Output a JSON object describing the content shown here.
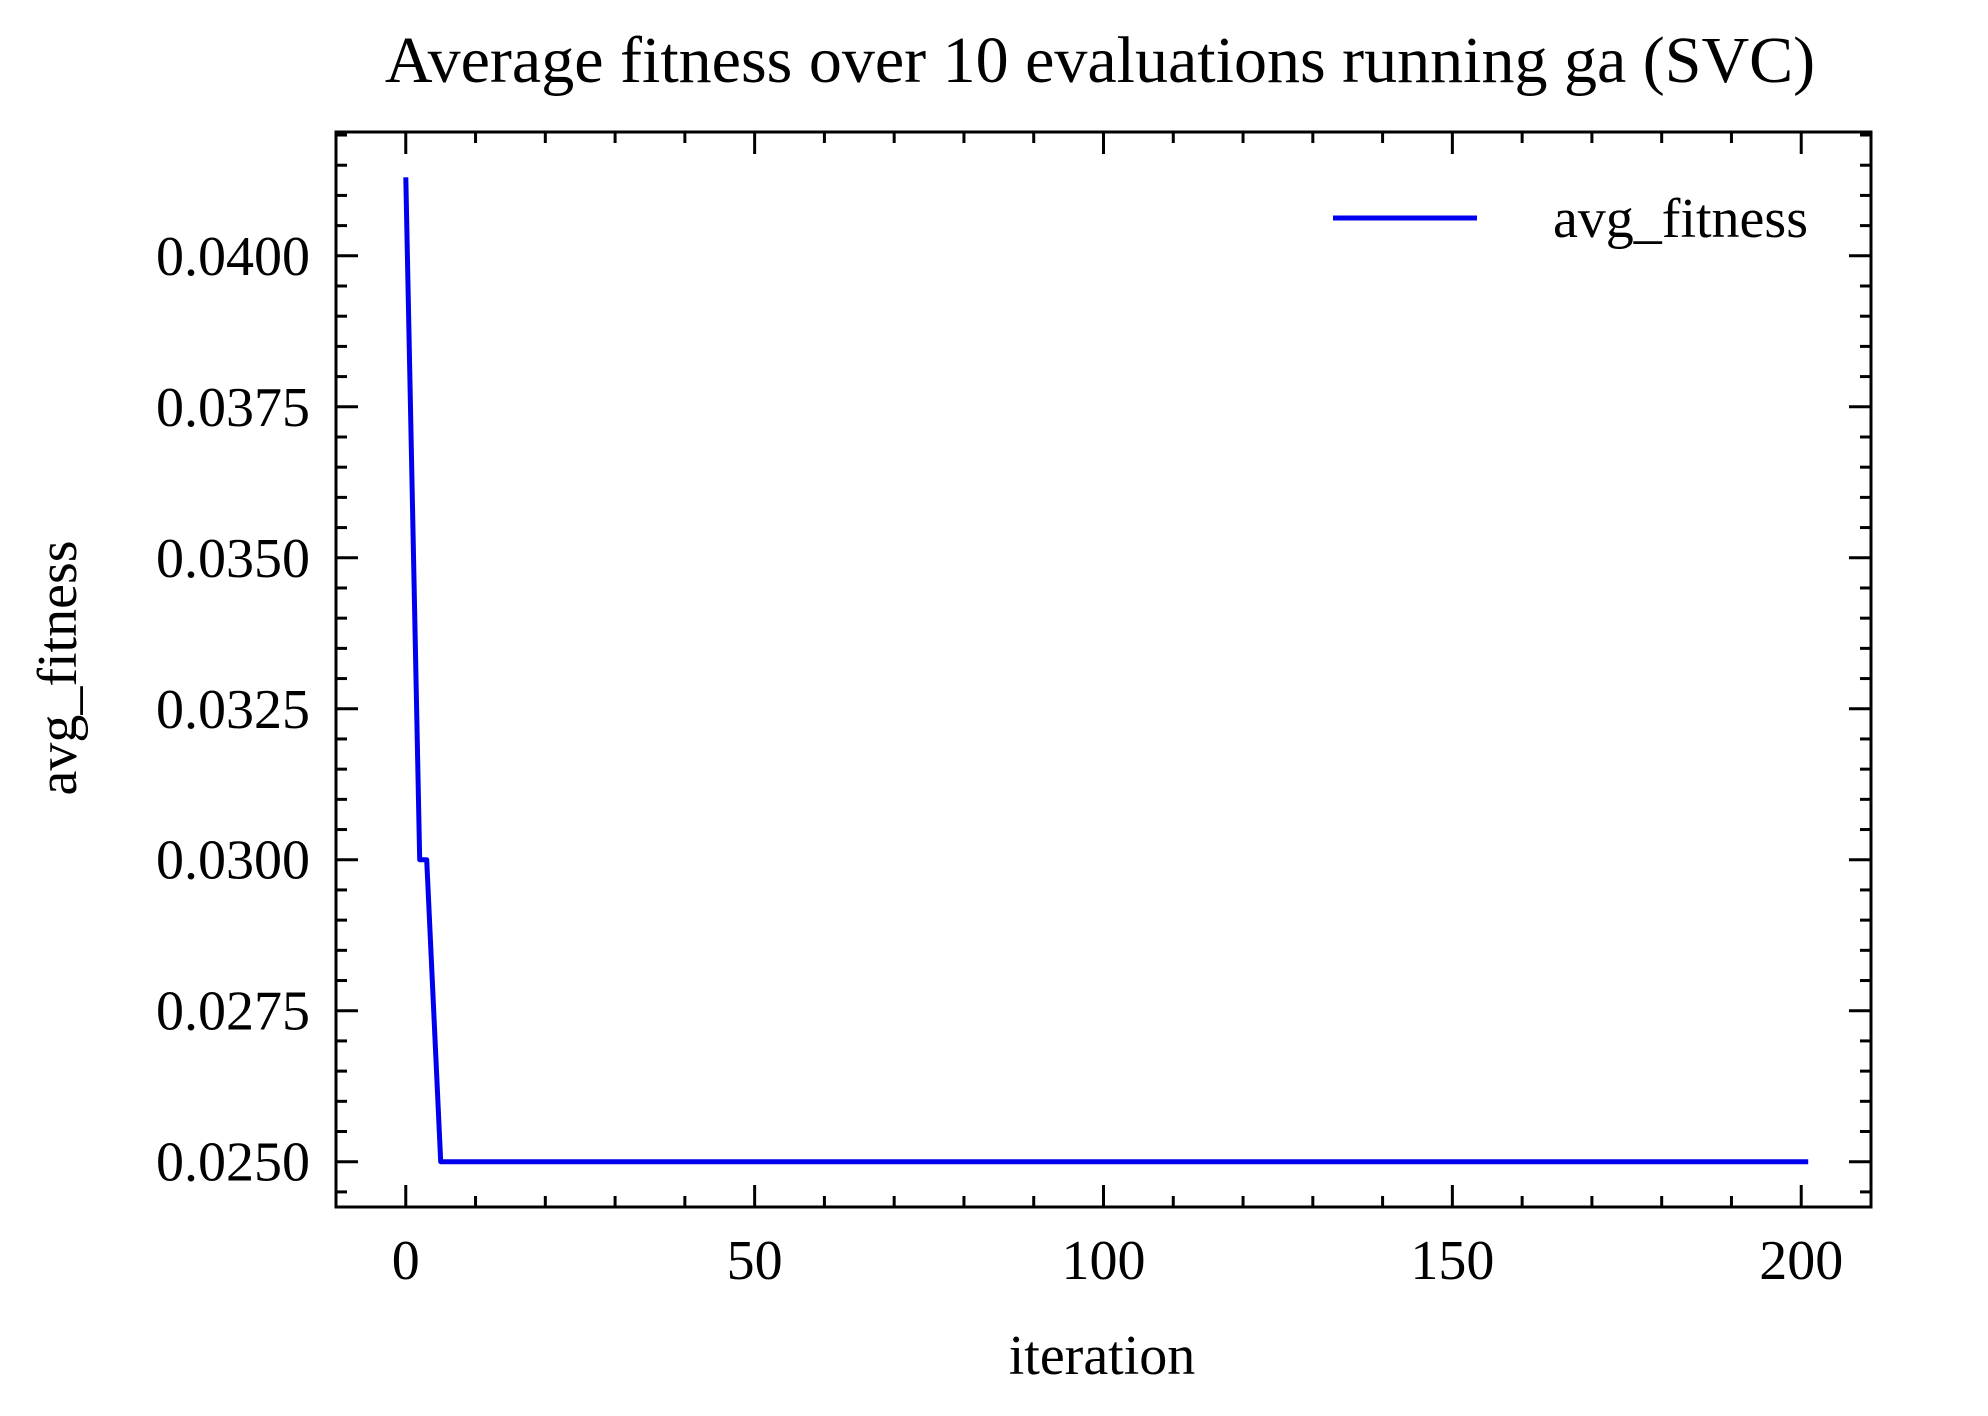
{
  "chart_data": {
    "type": "line",
    "title": "Average fitness over 10 evaluations running ga (SVC)",
    "xlabel": "iteration",
    "ylabel": "avg_fitness",
    "xlim": [
      -10,
      210
    ],
    "ylim": [
      0.02425,
      0.04205
    ],
    "x_ticks": [
      0,
      50,
      100,
      150,
      200
    ],
    "x_tick_labels": [
      "0",
      "50",
      "100",
      "150",
      "200"
    ],
    "x_minor_step": 10,
    "y_ticks": [
      0.025,
      0.0275,
      0.03,
      0.0325,
      0.035,
      0.0375,
      0.04
    ],
    "y_tick_labels": [
      "0.0250",
      "0.0275",
      "0.0300",
      "0.0325",
      "0.0350",
      "0.0375",
      "0.0400"
    ],
    "y_minor_step": 0.0005,
    "grid": false,
    "legend": {
      "position": "top-right",
      "entries": [
        "avg_fitness"
      ]
    },
    "series": [
      {
        "name": "avg_fitness",
        "color": "#0000ee",
        "x": [
          0,
          2,
          3,
          5,
          201
        ],
        "y": [
          0.0413,
          0.03,
          0.03,
          0.025,
          0.025
        ]
      }
    ]
  }
}
